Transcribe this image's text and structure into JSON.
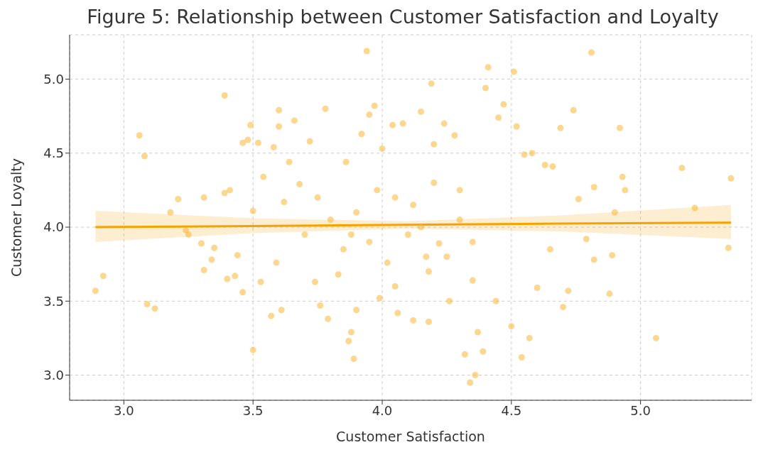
{
  "chart_data": {
    "type": "scatter",
    "title": "Figure 5: Relationship between Customer Satisfaction and Loyalty",
    "xlabel": "Customer Satisfaction",
    "ylabel": "Customer Loyalty",
    "xlim": [
      2.79,
      5.43
    ],
    "ylim": [
      2.83,
      5.3
    ],
    "xticks": [
      {
        "value": 3,
        "label": "3.0"
      },
      {
        "value": 3.5,
        "label": "3.5"
      },
      {
        "value": 4,
        "label": "4.0"
      },
      {
        "value": 4.5,
        "label": "4.5"
      },
      {
        "value": 5,
        "label": "5.0"
      }
    ],
    "yticks": [
      {
        "value": 3,
        "label": "3.0"
      },
      {
        "value": 3.5,
        "label": "3.5"
      },
      {
        "value": 4,
        "label": "4.0"
      },
      {
        "value": 4.5,
        "label": "4.5"
      },
      {
        "value": 5,
        "label": "5.0"
      }
    ],
    "grid": true,
    "series": [
      {
        "marker": "circle",
        "color": "#f7b733",
        "x": [
          2.89,
          2.92,
          3.06,
          3.08,
          3.09,
          3.12,
          3.18,
          3.21,
          3.24,
          3.25,
          3.3,
          3.31,
          3.31,
          3.34,
          3.35,
          3.39,
          3.39,
          3.4,
          3.41,
          3.43,
          3.44,
          3.46,
          3.46,
          3.48,
          3.49,
          3.5,
          3.5,
          3.52,
          3.53,
          3.54,
          3.57,
          3.58,
          3.59,
          3.6,
          3.6,
          3.61,
          3.62,
          3.64,
          3.66,
          3.68,
          3.7,
          3.72,
          3.74,
          3.76,
          3.78,
          3.79,
          3.8,
          3.83,
          3.86,
          3.87,
          3.88,
          3.89,
          3.9,
          3.92,
          3.94,
          3.95,
          3.97,
          3.99,
          4.0,
          4.02,
          4.04,
          4.06,
          4.08,
          4.1,
          4.12,
          4.15,
          4.17,
          4.18,
          4.19,
          4.2,
          4.22,
          4.24,
          4.26,
          4.28,
          4.3,
          4.32,
          4.34,
          4.35,
          4.36,
          4.37,
          4.39,
          4.4,
          4.41,
          4.44,
          4.45,
          4.47,
          4.5,
          4.51,
          4.52,
          4.54,
          4.55,
          4.57,
          4.58,
          4.6,
          4.63,
          4.65,
          4.66,
          4.69,
          4.7,
          4.72,
          4.74,
          4.76,
          4.79,
          4.81,
          4.82,
          4.82,
          4.88,
          4.89,
          4.9,
          4.92,
          4.93,
          4.94,
          5.06,
          5.16,
          5.21,
          5.34,
          5.35,
          3.9,
          3.95,
          4.05,
          4.15,
          4.25,
          4.05,
          3.85,
          4.2,
          4.3,
          3.75,
          4.35,
          3.98,
          4.12,
          3.88,
          4.18
        ],
        "values": [
          3.57,
          3.67,
          4.62,
          4.48,
          3.48,
          3.45,
          4.1,
          4.19,
          3.98,
          3.95,
          3.89,
          3.71,
          4.2,
          3.78,
          3.86,
          4.89,
          4.23,
          3.65,
          4.25,
          3.67,
          3.81,
          4.57,
          3.56,
          4.59,
          4.69,
          3.17,
          4.11,
          4.57,
          3.63,
          4.34,
          3.4,
          4.54,
          3.76,
          4.79,
          4.68,
          3.44,
          4.17,
          4.44,
          4.72,
          4.29,
          3.95,
          4.58,
          3.63,
          3.47,
          4.8,
          3.38,
          4.05,
          3.68,
          4.44,
          3.23,
          3.29,
          3.11,
          3.44,
          4.63,
          5.19,
          4.76,
          4.82,
          3.52,
          4.53,
          3.76,
          4.69,
          3.42,
          4.7,
          3.95,
          3.37,
          4.78,
          3.8,
          3.36,
          4.97,
          4.56,
          3.89,
          4.7,
          3.5,
          4.62,
          4.25,
          3.14,
          2.95,
          3.64,
          3.0,
          3.29,
          3.16,
          4.94,
          5.08,
          3.5,
          4.74,
          4.83,
          3.33,
          5.05,
          4.68,
          3.12,
          4.49,
          3.25,
          4.5,
          3.59,
          4.42,
          3.85,
          4.41,
          4.67,
          3.46,
          3.57,
          4.79,
          4.19,
          3.92,
          5.18,
          4.27,
          3.78,
          3.55,
          3.81,
          4.1,
          4.67,
          4.34,
          4.25,
          3.25,
          4.4,
          4.13,
          3.86,
          4.33,
          4.1,
          3.9,
          4.2,
          4.0,
          3.8,
          3.6,
          3.85,
          4.3,
          4.05,
          4.2,
          3.9,
          4.25,
          4.15,
          3.95,
          3.7
        ]
      },
      {
        "type": "line",
        "marker": "none",
        "color": "#f5a300",
        "x": [
          2.89,
          3.5,
          4.1,
          4.7,
          5.35
        ],
        "values": [
          4.0,
          4.008,
          4.016,
          4.024,
          4.03
        ],
        "lower": [
          3.9,
          3.96,
          3.99,
          3.97,
          3.92
        ],
        "upper": [
          4.11,
          4.06,
          4.04,
          4.08,
          4.15
        ]
      }
    ]
  }
}
